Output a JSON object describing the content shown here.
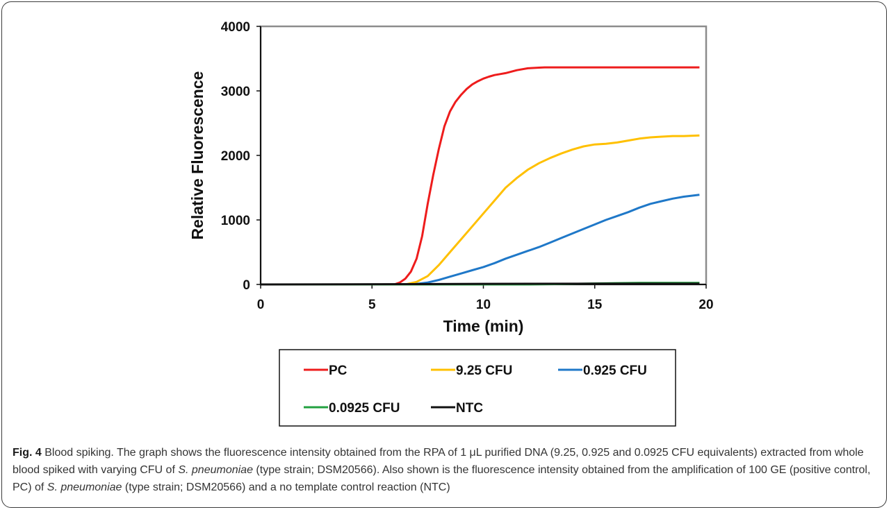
{
  "chart_data": {
    "type": "line",
    "xlabel": "Time (min)",
    "ylabel": "Relative Fluorescence",
    "xlim": [
      0,
      20
    ],
    "ylim": [
      0,
      4000
    ],
    "x_ticks": [
      "0",
      "5",
      "10",
      "15",
      "20"
    ],
    "y_ticks": [
      "0",
      "1000",
      "2000",
      "3000",
      "4000"
    ],
    "grid": false,
    "legend_position": "bottom",
    "series": [
      {
        "name": "PC",
        "color": "#ee1c1c",
        "x": [
          0,
          6,
          6.25,
          6.5,
          6.75,
          7,
          7.25,
          7.5,
          7.75,
          8,
          8.25,
          8.5,
          8.75,
          9,
          9.25,
          9.5,
          9.75,
          10,
          10.25,
          10.5,
          10.75,
          11,
          11.5,
          12,
          12.5,
          12.75,
          13,
          14,
          15,
          16,
          17,
          18,
          19,
          19.7
        ],
        "y": [
          0,
          0,
          30,
          90,
          200,
          400,
          750,
          1250,
          1700,
          2100,
          2450,
          2680,
          2830,
          2940,
          3030,
          3100,
          3150,
          3190,
          3220,
          3245,
          3260,
          3275,
          3320,
          3350,
          3360,
          3365,
          3365,
          3365,
          3365,
          3365,
          3365,
          3365,
          3365,
          3365
        ]
      },
      {
        "name": "9.25 CFU",
        "color": "#ffc000",
        "x": [
          0,
          6.5,
          7,
          7.5,
          8,
          8.5,
          9,
          9.5,
          10,
          10.5,
          11,
          11.5,
          12,
          12.5,
          13,
          13.5,
          14,
          14.5,
          15,
          15.5,
          16,
          16.5,
          17,
          17.5,
          18,
          18.5,
          19,
          19.7
        ],
        "y": [
          0,
          0,
          40,
          130,
          300,
          500,
          700,
          900,
          1100,
          1300,
          1500,
          1650,
          1780,
          1880,
          1960,
          2030,
          2090,
          2140,
          2170,
          2180,
          2200,
          2230,
          2260,
          2280,
          2290,
          2300,
          2300,
          2310
        ]
      },
      {
        "name": "0.925 CFU",
        "color": "#1f78c8",
        "x": [
          0,
          6.8,
          7.5,
          8,
          8.5,
          9,
          9.5,
          10,
          10.5,
          11,
          11.5,
          12,
          12.5,
          13,
          13.5,
          14,
          14.5,
          15,
          15.5,
          16,
          16.5,
          17,
          17.5,
          18,
          18.5,
          19,
          19.7
        ],
        "y": [
          0,
          0,
          30,
          70,
          120,
          170,
          220,
          270,
          330,
          400,
          460,
          520,
          580,
          650,
          720,
          790,
          860,
          930,
          1000,
          1060,
          1120,
          1190,
          1250,
          1290,
          1330,
          1360,
          1390
        ]
      },
      {
        "name": "0.0925 CFU",
        "color": "#22a040",
        "x": [
          0,
          12,
          14,
          15,
          16,
          17,
          18,
          19,
          19.7
        ],
        "y": [
          0,
          0,
          10,
          15,
          20,
          25,
          25,
          25,
          25
        ]
      },
      {
        "name": "NTC",
        "color": "#111111",
        "x": [
          0,
          7,
          10,
          15,
          19.7
        ],
        "y": [
          0,
          5,
          10,
          12,
          12
        ]
      }
    ]
  },
  "caption": {
    "label": "Fig. 4",
    "segments": [
      {
        "text": " Blood spiking. The graph shows the fluorescence intensity obtained from the RPA of 1 μL purified DNA (9.25, 0.925 and 0.0925 CFU equivalents) extracted from whole blood spiked with varying CFU of ",
        "italic": false
      },
      {
        "text": "S. pneumoniae",
        "italic": true
      },
      {
        "text": " (type strain; DSM20566). Also shown is the fluorescence intensity obtained from the amplification of 100 GE (positive control, PC) of ",
        "italic": false
      },
      {
        "text": "S. pneumoniae",
        "italic": true
      },
      {
        "text": " (type strain; DSM20566) and a no template control reaction (NTC)",
        "italic": false
      }
    ]
  }
}
